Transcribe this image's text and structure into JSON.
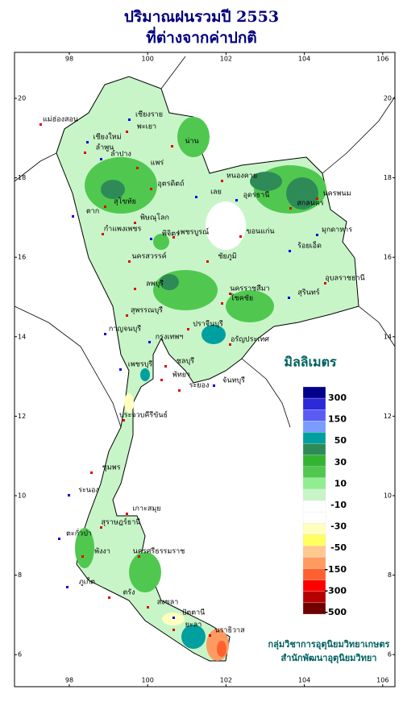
{
  "header": {
    "title": "ปริมาณฝนรวมปี 2553",
    "subtitle": "ที่ต่างจากค่าปกติ"
  },
  "lon_ticks": [
    98,
    100,
    102,
    104,
    106
  ],
  "lat_ticks": [
    20,
    18,
    16,
    14,
    12,
    10,
    8,
    6
  ],
  "legend": {
    "title": "มิลลิเมตร",
    "labels": [
      300,
      150,
      50,
      30,
      10,
      -10,
      -30,
      -50,
      -150,
      -300,
      -500
    ],
    "colors": [
      "#00008b",
      "#2a2ad8",
      "#5a5af5",
      "#7a9cff",
      "#00a0a0",
      "#2e8b57",
      "#32b432",
      "#50c850",
      "#90ee90",
      "#c8f5c8",
      "#ffffff",
      "#ffffff",
      "#ffffc0",
      "#ffff60",
      "#ffc890",
      "#ff9a60",
      "#ff6030",
      "#ff0000",
      "#b40000",
      "#700000"
    ]
  },
  "places": [
    "เชียงราย",
    "แม่ฮ่องสอน",
    "พะเยา",
    "เชียงใหม่",
    "น่าน",
    "ลำพูน",
    "ลำปาง",
    "แพร่",
    "อุตรดิตถ์",
    "ตาก",
    "สุโขทัย",
    "หนองคาย",
    "อุดรธานี",
    "สกลนคร",
    "นครพนม",
    "เลย",
    "พิษณุโลก",
    "กำแพงเพชร",
    "พิจิตร",
    "เพชรบูรณ์",
    "ขอนแก่น",
    "มุกดาหาร",
    "นครสวรรค์",
    "ชัยภูมิ",
    "ร้อยเอ็ด",
    "ลพบุรี",
    "นครราชสีมา",
    "สุรินทร์",
    "อุบลราชธานี",
    "สุพรรณบุรี",
    "กาญจนบุรี",
    "โชคชัย",
    "ปราจีนบุรี",
    "กรุงเทพฯ",
    "อรัญประเทศ",
    "ชลบุรี",
    "เพชรบุรี",
    "พัทยา",
    "ระยอง",
    "จันทบุรี",
    "ประจวบคีรีขันธ์",
    "ชุมพร",
    "ระนอง",
    "เกาะสมุย",
    "สุราษฎร์ธานี",
    "ตะกั่วป่า",
    "พังงา",
    "นครศรีธรรมราช",
    "ภูเก็ต",
    "ตรัง",
    "สงขลา",
    "ปัตตานี",
    "ยะลา",
    "นราธิวาส"
  ],
  "credits": [
    "กลุ่มวิชาการอุตุนิยมวิทยาเกษตร",
    "สำนักพัฒนาอุตุนิยมวิทยา"
  ]
}
